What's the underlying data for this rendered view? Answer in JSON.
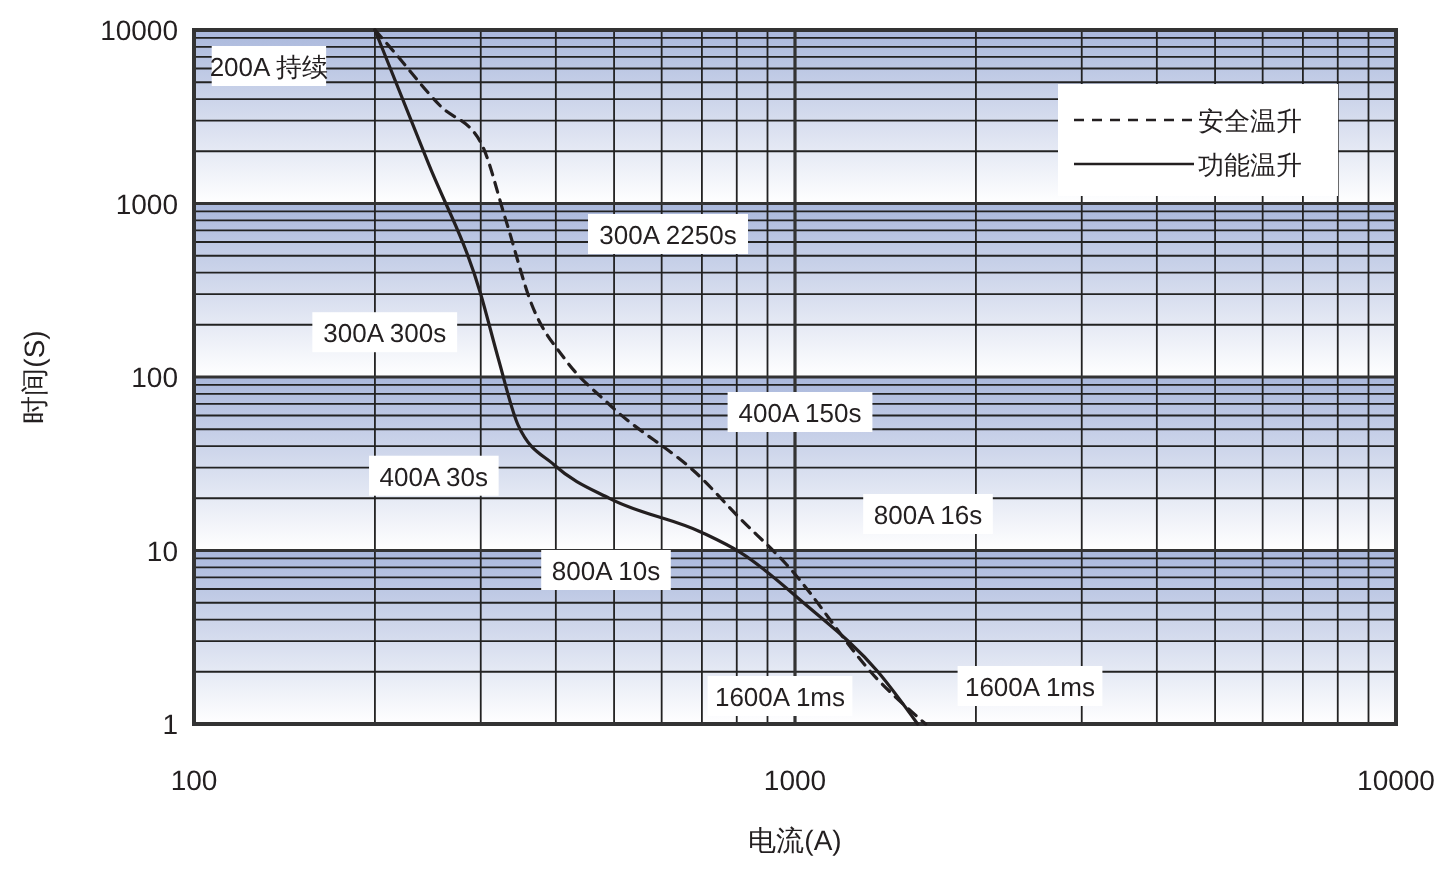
{
  "chart_data": {
    "type": "line",
    "xlabel": "电流(A)",
    "ylabel": "时间(S)",
    "log": "xy",
    "grid": true,
    "legend": "top right",
    "marker": "none",
    "xlim": [
      100,
      10000
    ],
    "xticks": [
      100,
      1000,
      10000
    ],
    "ylim": [
      1,
      10000
    ],
    "yticks": [
      1,
      10,
      100,
      1000,
      10000
    ],
    "series": [
      {
        "name": "安全温升",
        "color": "#231f20",
        "line_style": "dashed",
        "x": [
          200,
          211,
          257,
          300,
          330,
          365,
          414,
          492,
          700,
          800,
          968,
          1374,
          1650
        ],
        "values": [
          10000,
          8100,
          3650,
          2250,
          810,
          260,
          127,
          69,
          26,
          16,
          8.3,
          1.8,
          1
        ]
      },
      {
        "name": "功能温升",
        "color": "#231f20",
        "line_style": "solid",
        "x": [
          200,
          245,
          300,
          321,
          346,
          398,
          492,
          700,
          813,
          1040,
          1374,
          1600
        ],
        "values": [
          10000,
          1730,
          300,
          127,
          53,
          31,
          19.9,
          12.7,
          9.7,
          4.9,
          2,
          1
        ]
      }
    ],
    "annotations": [
      {
        "text": "200A 持续",
        "x": 200,
        "y": 10000
      },
      "300A 2250s",
      {
        "text": "300A 300s",
        "x": 300,
        "y": 300
      },
      {
        "text": "400A 30s",
        "x": 400,
        "y": 30
      },
      "400A 150s",
      "800A 10s",
      "800A 16s",
      "1600A 1ms",
      "1600A 1ms"
    ]
  }
}
